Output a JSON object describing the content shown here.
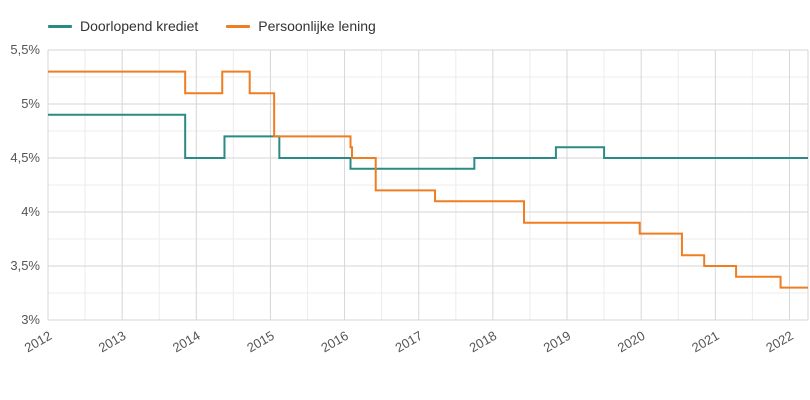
{
  "chart_data": {
    "type": "line",
    "step": true,
    "grid": true,
    "legend_position": "top-left",
    "ylim": [
      3.0,
      5.5
    ],
    "xlim": [
      2012.0,
      2022.25
    ],
    "y_ticks": [
      {
        "value": 5.5,
        "label": "5,5%"
      },
      {
        "value": 5.0,
        "label": "5%"
      },
      {
        "value": 4.5,
        "label": "4,5%"
      },
      {
        "value": 4.0,
        "label": "4%"
      },
      {
        "value": 3.5,
        "label": "3,5%"
      },
      {
        "value": 3.0,
        "label": "3%"
      }
    ],
    "x_ticks": [
      {
        "value": 2012,
        "label": "2012"
      },
      {
        "value": 2013,
        "label": "2013"
      },
      {
        "value": 2014,
        "label": "2014"
      },
      {
        "value": 2015,
        "label": "2015"
      },
      {
        "value": 2016,
        "label": "2016"
      },
      {
        "value": 2017,
        "label": "2017"
      },
      {
        "value": 2018,
        "label": "2018"
      },
      {
        "value": 2019,
        "label": "2019"
      },
      {
        "value": 2020,
        "label": "2020"
      },
      {
        "value": 2021,
        "label": "2021"
      },
      {
        "value": 2022,
        "label": "2022"
      }
    ],
    "series": [
      {
        "name": "Doorlopend krediet",
        "color": "#2a8a86",
        "points": [
          [
            2012.0,
            4.9
          ],
          [
            2013.85,
            4.5
          ],
          [
            2014.38,
            4.7
          ],
          [
            2015.12,
            4.5
          ],
          [
            2016.08,
            4.4
          ],
          [
            2017.75,
            4.5
          ],
          [
            2018.85,
            4.6
          ],
          [
            2019.5,
            4.5
          ],
          [
            2022.25,
            4.5
          ]
        ]
      },
      {
        "name": "Persoonlijke lening",
        "color": "#ef7d22",
        "points": [
          [
            2012.0,
            5.3
          ],
          [
            2013.85,
            5.1
          ],
          [
            2014.35,
            5.3
          ],
          [
            2014.72,
            5.1
          ],
          [
            2015.05,
            4.7
          ],
          [
            2016.08,
            4.6
          ],
          [
            2016.1,
            4.5
          ],
          [
            2016.42,
            4.2
          ],
          [
            2017.22,
            4.1
          ],
          [
            2018.42,
            3.9
          ],
          [
            2019.98,
            3.8
          ],
          [
            2020.55,
            3.6
          ],
          [
            2020.85,
            3.5
          ],
          [
            2021.28,
            3.4
          ],
          [
            2021.88,
            3.3
          ],
          [
            2022.25,
            3.3
          ]
        ]
      }
    ]
  }
}
